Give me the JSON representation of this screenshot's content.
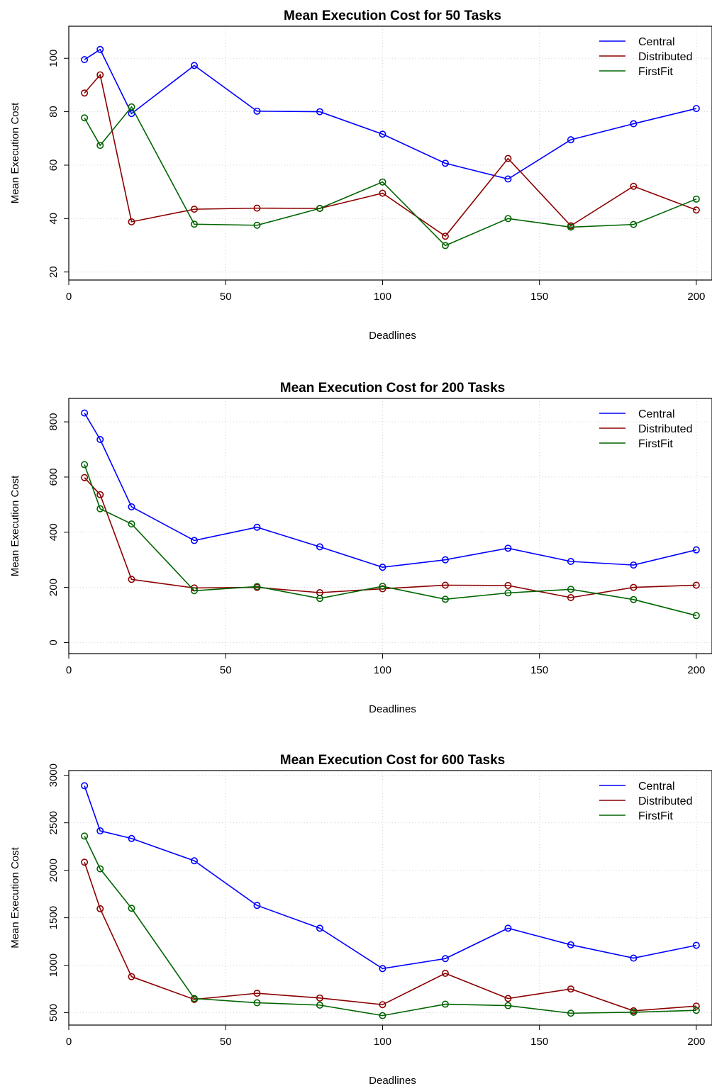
{
  "chart_data": [
    {
      "type": "line",
      "title": "Mean Execution Cost for 50 Tasks",
      "xlabel": "Deadlines",
      "ylabel": "Mean Execution Cost",
      "x": [
        5,
        10,
        20,
        40,
        60,
        80,
        100,
        120,
        140,
        160,
        180,
        200
      ],
      "xlim": [
        0,
        205
      ],
      "ylim": [
        17,
        112
      ],
      "xticks": [
        0,
        50,
        100,
        150,
        200
      ],
      "yticks": [
        20,
        40,
        60,
        80,
        100
      ],
      "grid": true,
      "legend_position": "top-right",
      "series": [
        {
          "name": "Central",
          "color": "#0000ff",
          "values": [
            99.5,
            103.3,
            79.3,
            97.3,
            80.2,
            80.0,
            71.6,
            60.7,
            54.8,
            69.5,
            75.5,
            81.2
          ]
        },
        {
          "name": "Distributed",
          "color": "#8b0000",
          "values": [
            87.0,
            93.8,
            38.8,
            43.5,
            43.9,
            43.8,
            49.5,
            33.4,
            62.5,
            37.3,
            52.1,
            43.2
          ]
        },
        {
          "name": "FirstFit",
          "color": "#006400",
          "values": [
            77.7,
            67.4,
            81.8,
            37.9,
            37.5,
            43.8,
            53.7,
            29.9,
            40.0,
            36.8,
            37.8,
            47.3
          ]
        }
      ]
    },
    {
      "type": "line",
      "title": "Mean Execution Cost for 200 Tasks",
      "xlabel": "Deadlines",
      "ylabel": "Mean Execution Cost",
      "x": [
        5,
        10,
        20,
        40,
        60,
        80,
        100,
        120,
        140,
        160,
        180,
        200
      ],
      "xlim": [
        0,
        205
      ],
      "ylim": [
        -40,
        885
      ],
      "xticks": [
        0,
        50,
        100,
        150,
        200
      ],
      "yticks": [
        0,
        200,
        400,
        600,
        800
      ],
      "grid": true,
      "legend_position": "top-right",
      "series": [
        {
          "name": "Central",
          "color": "#0000ff",
          "values": [
            832,
            736,
            492,
            370,
            418,
            347,
            273,
            300,
            342,
            294,
            281,
            336
          ]
        },
        {
          "name": "Distributed",
          "color": "#8b0000",
          "values": [
            598,
            536,
            229,
            198,
            200,
            181,
            195,
            208,
            207,
            163,
            200,
            208
          ]
        },
        {
          "name": "FirstFit",
          "color": "#006400",
          "values": [
            645,
            485,
            430,
            188,
            203,
            160,
            204,
            157,
            180,
            193,
            156,
            98
          ]
        }
      ]
    },
    {
      "type": "line",
      "title": "Mean Execution Cost for 600 Tasks",
      "xlabel": "Deadlines",
      "ylabel": "Mean Execution Cost",
      "x": [
        5,
        10,
        20,
        40,
        60,
        80,
        100,
        120,
        140,
        160,
        180,
        200
      ],
      "xlim": [
        0,
        205
      ],
      "ylim": [
        370,
        3050
      ],
      "xticks": [
        0,
        50,
        100,
        150,
        200
      ],
      "yticks": [
        500,
        1000,
        1500,
        2000,
        2500,
        3000
      ],
      "grid": true,
      "legend_position": "top-right",
      "series": [
        {
          "name": "Central",
          "color": "#0000ff",
          "values": [
            2890,
            2415,
            2335,
            2100,
            1630,
            1390,
            965,
            1070,
            1390,
            1215,
            1075,
            1210
          ]
        },
        {
          "name": "Distributed",
          "color": "#8b0000",
          "values": [
            2085,
            1595,
            880,
            640,
            705,
            655,
            585,
            915,
            650,
            750,
            520,
            570
          ]
        },
        {
          "name": "FirstFit",
          "color": "#006400",
          "values": [
            2360,
            2015,
            1600,
            650,
            605,
            580,
            470,
            590,
            575,
            495,
            505,
            525
          ]
        }
      ]
    }
  ]
}
